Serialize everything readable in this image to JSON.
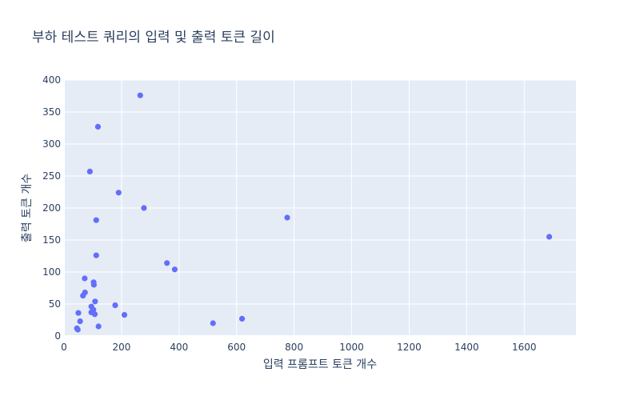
{
  "chart_data": {
    "type": "scatter",
    "title": "부하 테스트 쿼리의 입력 및 출력 토큰 길이",
    "xlabel": "입력 프롬프트 토큰 개수",
    "ylabel": "출력 토큰 개수",
    "xlim": [
      0,
      1780
    ],
    "ylim": [
      0,
      400
    ],
    "xticks": [
      0,
      200,
      400,
      600,
      800,
      1000,
      1200,
      1400,
      1600
    ],
    "yticks": [
      0,
      50,
      100,
      150,
      200,
      250,
      300,
      350,
      400
    ],
    "grid": true,
    "marker_color": "#636efa",
    "plot_background": "#e5ecf6",
    "points": [
      {
        "x": 265,
        "y": 376
      },
      {
        "x": 118,
        "y": 327
      },
      {
        "x": 90,
        "y": 257
      },
      {
        "x": 190,
        "y": 224
      },
      {
        "x": 278,
        "y": 200
      },
      {
        "x": 776,
        "y": 185
      },
      {
        "x": 112,
        "y": 181
      },
      {
        "x": 1687,
        "y": 155
      },
      {
        "x": 112,
        "y": 126
      },
      {
        "x": 358,
        "y": 114
      },
      {
        "x": 385,
        "y": 104
      },
      {
        "x": 72,
        "y": 90
      },
      {
        "x": 103,
        "y": 84
      },
      {
        "x": 104,
        "y": 80
      },
      {
        "x": 73,
        "y": 68
      },
      {
        "x": 66,
        "y": 63
      },
      {
        "x": 108,
        "y": 54
      },
      {
        "x": 178,
        "y": 48
      },
      {
        "x": 95,
        "y": 46
      },
      {
        "x": 102,
        "y": 41
      },
      {
        "x": 95,
        "y": 37
      },
      {
        "x": 50,
        "y": 36
      },
      {
        "x": 107,
        "y": 34
      },
      {
        "x": 210,
        "y": 33
      },
      {
        "x": 56,
        "y": 23
      },
      {
        "x": 518,
        "y": 20
      },
      {
        "x": 619,
        "y": 27
      },
      {
        "x": 120,
        "y": 15
      },
      {
        "x": 45,
        "y": 12
      },
      {
        "x": 48,
        "y": 10
      }
    ]
  }
}
